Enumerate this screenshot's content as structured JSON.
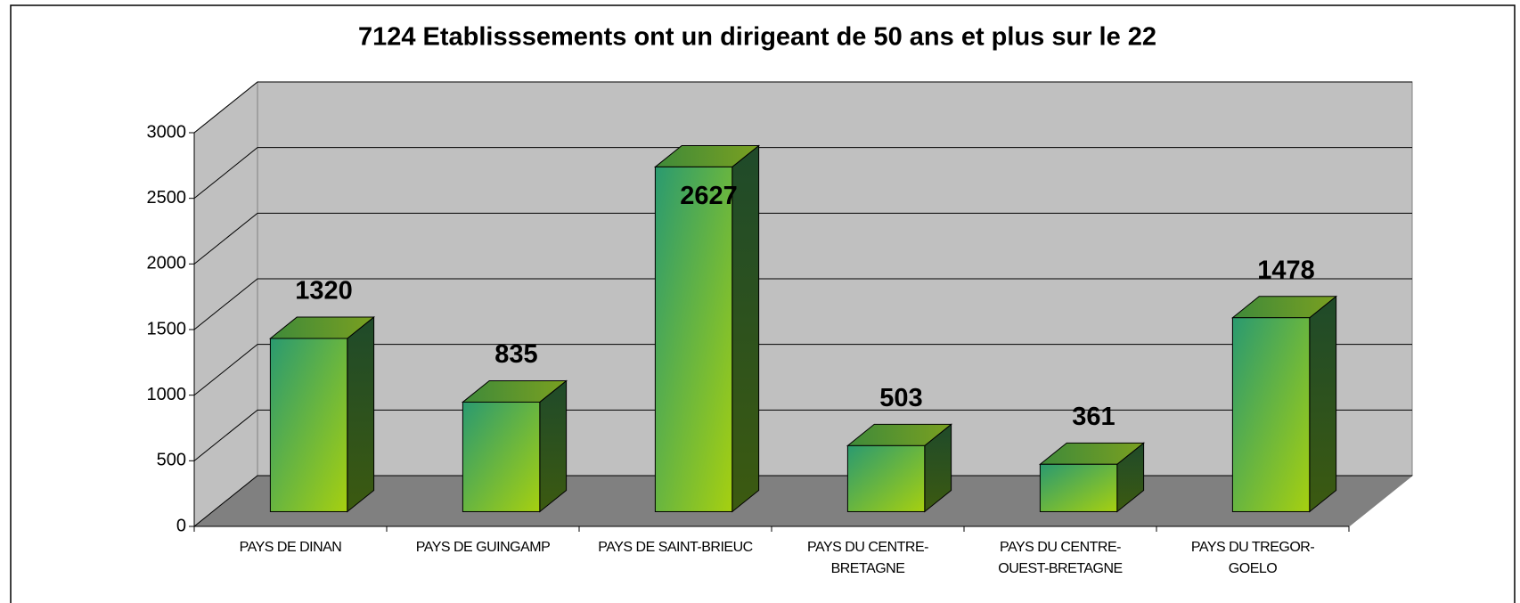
{
  "chart_data": {
    "type": "bar3d",
    "title": "7124 Etablisssements ont un dirigeant de 50 ans et plus sur  le 22",
    "categories": [
      "PAYS DE DINAN",
      "PAYS DE GUINGAMP",
      "PAYS DE SAINT-BRIEUC",
      "PAYS DU CENTRE-BRETAGNE",
      "PAYS DU CENTRE-OUEST-BRETAGNE",
      "PAYS DU TREGOR-GOELO"
    ],
    "values": [
      1320,
      835,
      2627,
      503,
      361,
      1478
    ],
    "ylim": [
      0,
      3000
    ],
    "yticks": [
      0,
      500,
      1000,
      1500,
      2000,
      2500,
      3000
    ],
    "grid": true
  }
}
